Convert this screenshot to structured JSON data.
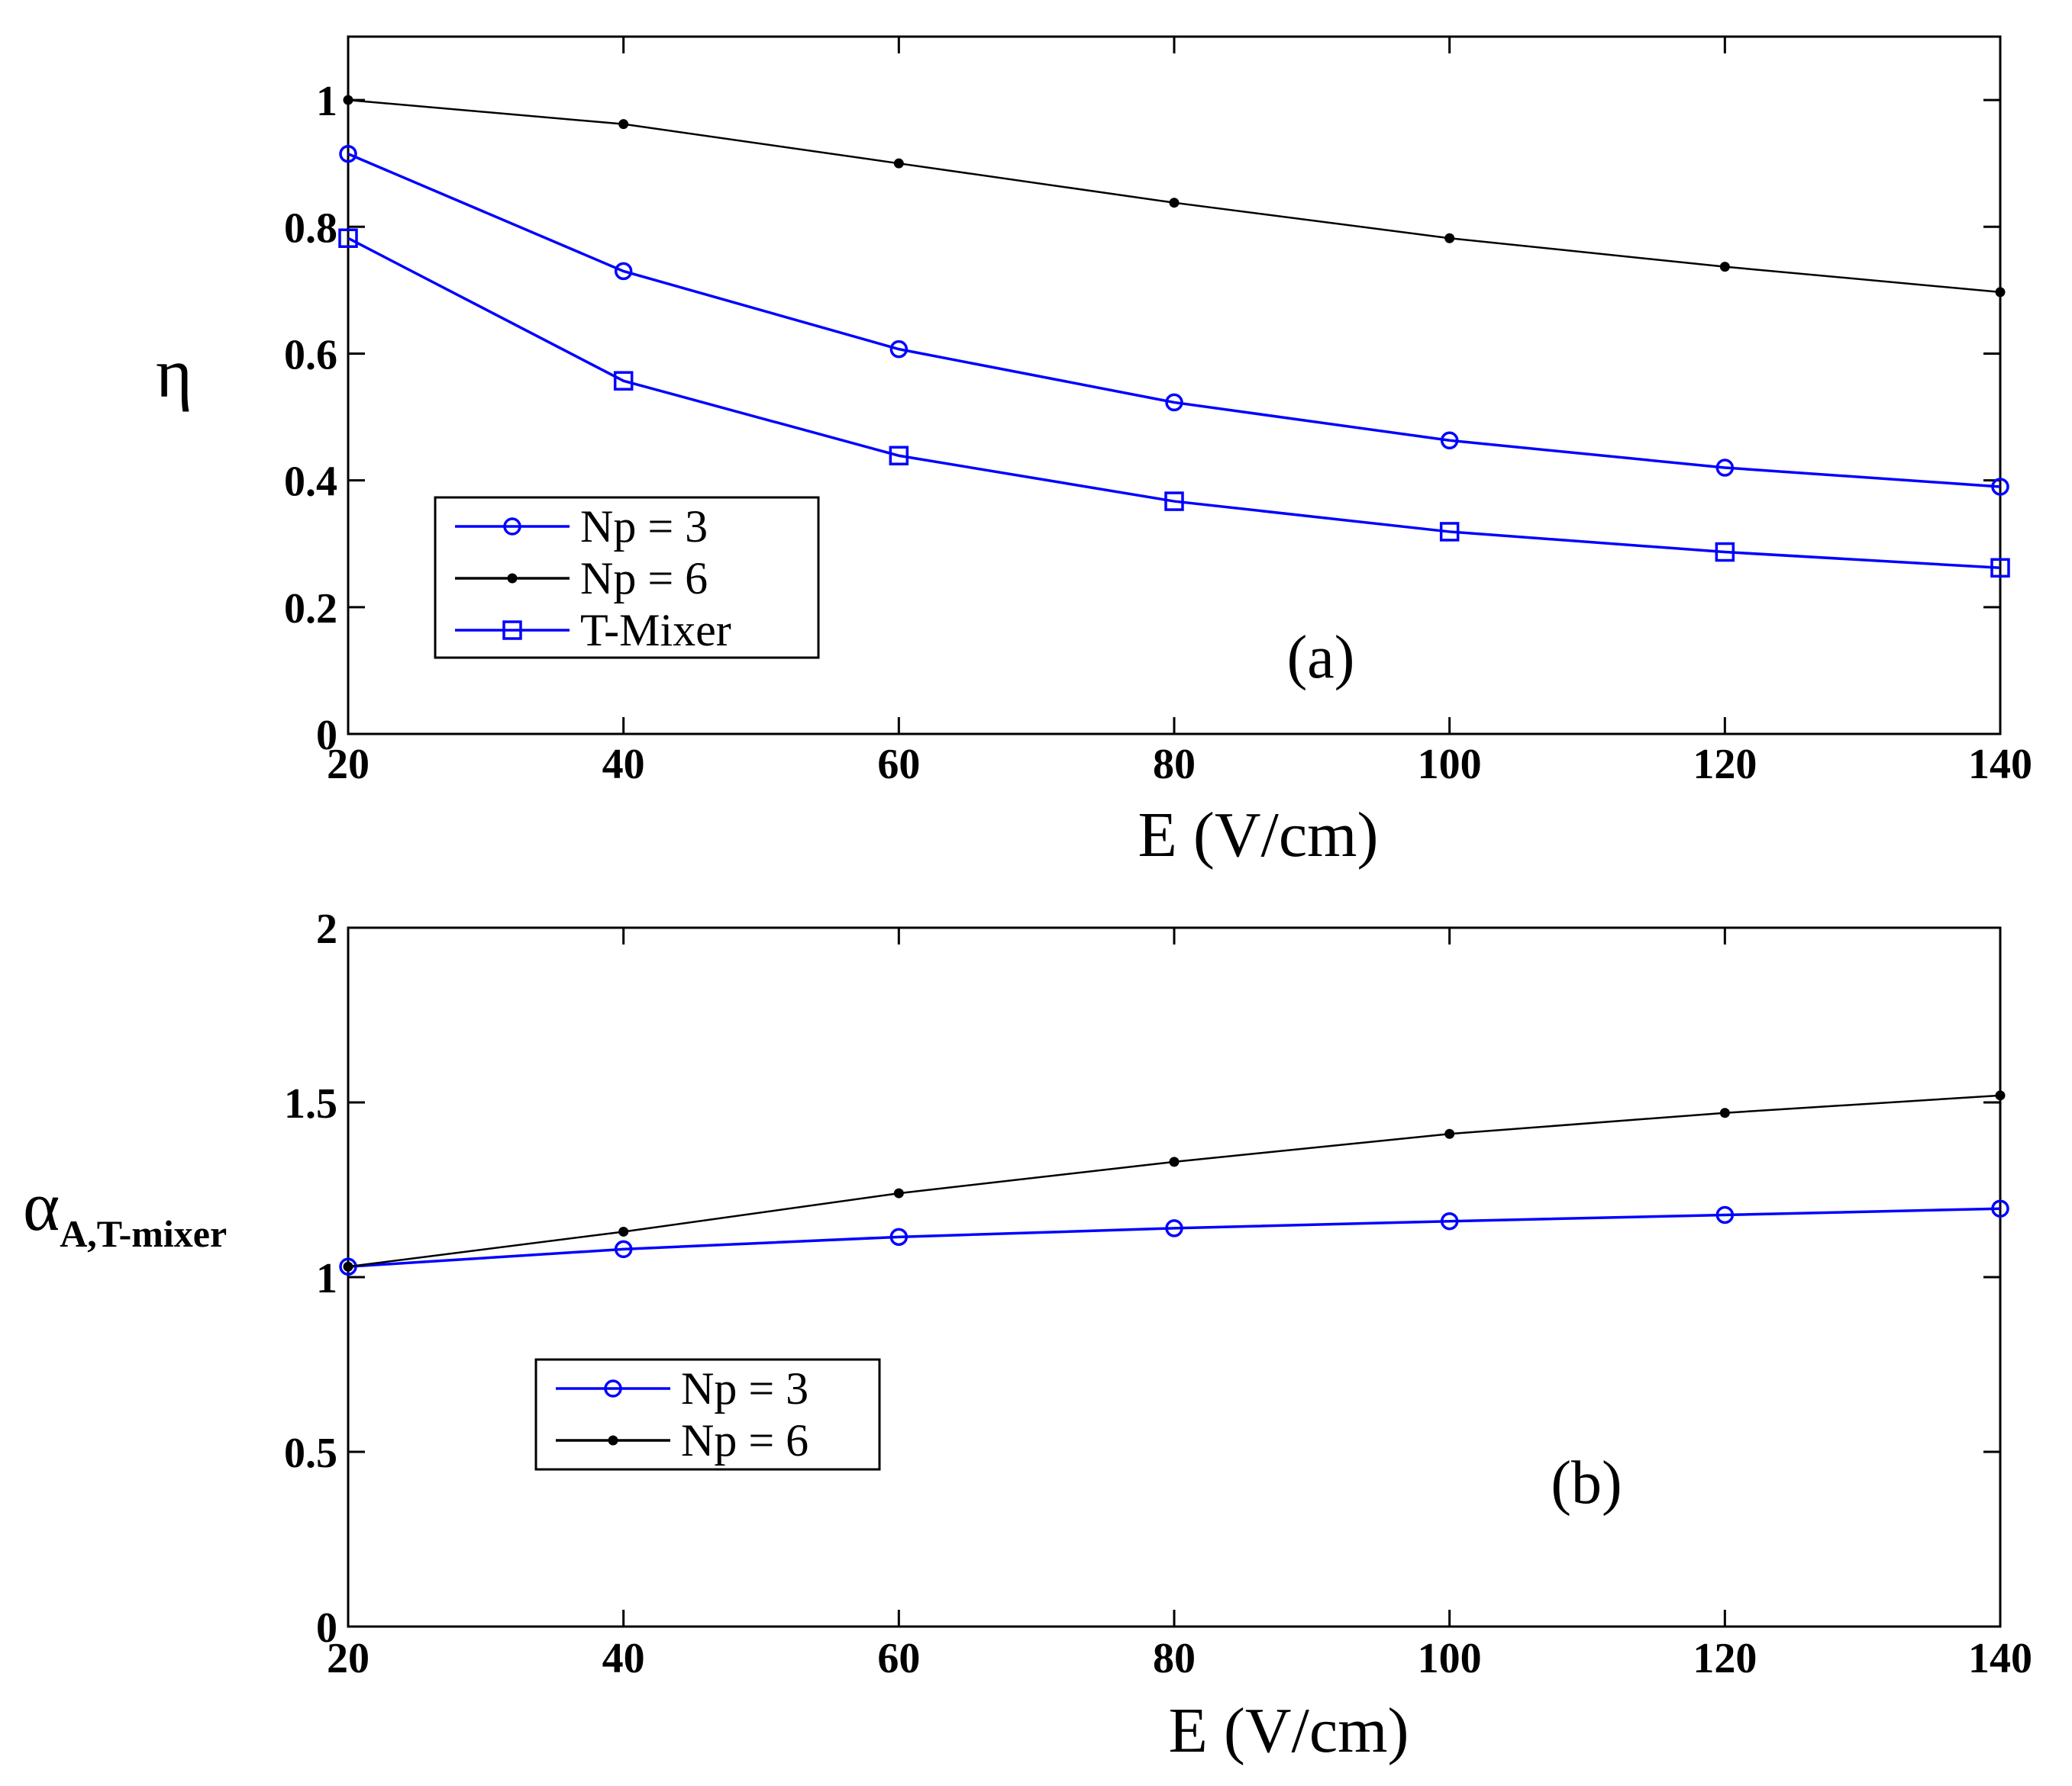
{
  "chart_data": [
    {
      "type": "line",
      "panel_label": "(a)",
      "xlabel": "E (V/cm)",
      "ylabel": "η",
      "ylabel_sub": "",
      "xlim": [
        20,
        140
      ],
      "ylim": [
        0,
        1.1
      ],
      "x_ticks": [
        20,
        40,
        60,
        80,
        100,
        120,
        140
      ],
      "y_ticks": [
        0,
        0.2,
        0.4,
        0.6,
        0.8,
        1
      ],
      "y_tick_labels": [
        "0",
        "0.2",
        "0.4",
        "0.6",
        "0.8",
        "1"
      ],
      "x": [
        20,
        40,
        60,
        80,
        100,
        120,
        140
      ],
      "series": [
        {
          "name": "Np = 3",
          "marker": "circle",
          "color": "#0000ff",
          "values": [
            0.915,
            0.73,
            0.607,
            0.523,
            0.463,
            0.42,
            0.39
          ]
        },
        {
          "name": "Np = 6",
          "marker": "dot",
          "color": "#000000",
          "values": [
            1.0,
            0.962,
            0.9,
            0.838,
            0.782,
            0.737,
            0.697
          ]
        },
        {
          "name": "T-Mixer",
          "marker": "square",
          "color": "#0000ff",
          "values": [
            0.782,
            0.557,
            0.439,
            0.367,
            0.319,
            0.287,
            0.262
          ]
        }
      ],
      "legend": {
        "location": "lower-left"
      }
    },
    {
      "type": "line",
      "panel_label": "(b)",
      "xlabel": "E (V/cm)",
      "ylabel": "α",
      "ylabel_sub": "A,T-mixer",
      "xlim": [
        20,
        140
      ],
      "ylim": [
        0,
        2
      ],
      "x_ticks": [
        20,
        40,
        60,
        80,
        100,
        120,
        140
      ],
      "y_ticks": [
        0,
        0.5,
        1,
        1.5,
        2
      ],
      "y_tick_labels": [
        "0",
        "0.5",
        "1",
        "1.5",
        "2"
      ],
      "x": [
        20,
        40,
        60,
        80,
        100,
        120,
        140
      ],
      "series": [
        {
          "name": "Np = 3",
          "marker": "circle",
          "color": "#0000ff",
          "values": [
            1.03,
            1.08,
            1.115,
            1.14,
            1.16,
            1.178,
            1.196
          ]
        },
        {
          "name": "Np = 6",
          "marker": "dot",
          "color": "#000000",
          "values": [
            1.03,
            1.13,
            1.24,
            1.33,
            1.41,
            1.47,
            1.52
          ]
        }
      ],
      "legend": {
        "location": "center-left"
      }
    }
  ]
}
